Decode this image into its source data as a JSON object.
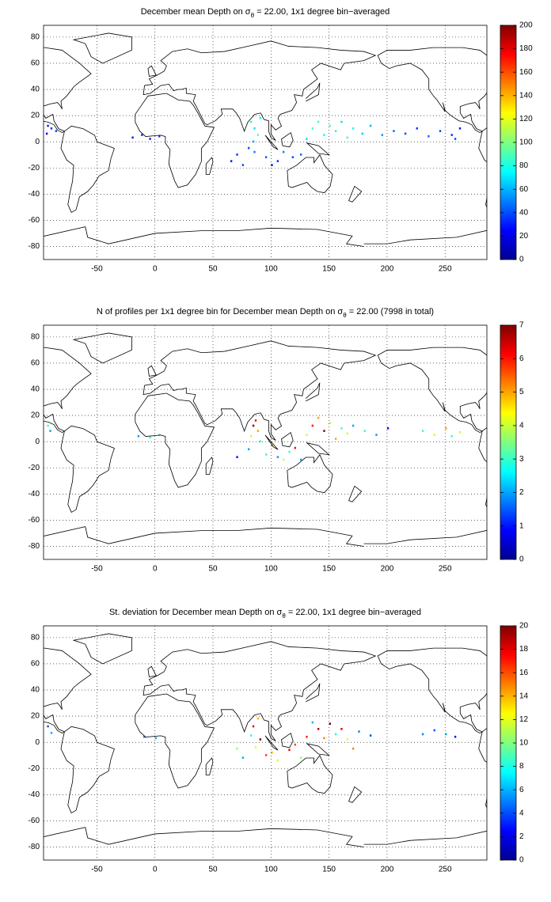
{
  "chart_data": [
    {
      "type": "heatmap",
      "colormap": "jet",
      "title": [
        "December mean Depth on σ",
        "θ",
        " = 22.00, 1x1 degree bin−averaged"
      ],
      "xlim": [
        -96,
        286
      ],
      "ylim": [
        -90,
        89
      ],
      "xticks": [
        -50,
        0,
        50,
        100,
        150,
        200,
        250
      ],
      "yticks": [
        -80,
        -60,
        -40,
        -20,
        0,
        20,
        40,
        60,
        80
      ],
      "grid": true,
      "clim": [
        0,
        200
      ],
      "cticks": [
        0,
        20,
        40,
        60,
        80,
        100,
        120,
        140,
        160,
        180,
        200
      ],
      "lon": [
        -93,
        -90,
        -94,
        -86,
        -20,
        -12,
        -5,
        3,
        82,
        85,
        88,
        84,
        90,
        80,
        70,
        65,
        75,
        95,
        105,
        110,
        118,
        125,
        130,
        135,
        140,
        145,
        150,
        155,
        160,
        165,
        170,
        178,
        185,
        195,
        205,
        215,
        225,
        235,
        245,
        255,
        262,
        258,
        100,
        85
      ],
      "lat": [
        12,
        10,
        6,
        8,
        3,
        5,
        2,
        4,
        15,
        10,
        5,
        0,
        18,
        -5,
        -10,
        -15,
        -18,
        -12,
        -15,
        -8,
        -12,
        -10,
        2,
        10,
        15,
        5,
        12,
        8,
        15,
        3,
        10,
        6,
        12,
        5,
        8,
        6,
        10,
        4,
        8,
        5,
        10,
        2,
        -18,
        -8
      ],
      "values": [
        30,
        35,
        25,
        40,
        30,
        35,
        30,
        35,
        80,
        70,
        90,
        60,
        75,
        40,
        35,
        30,
        40,
        45,
        35,
        50,
        40,
        45,
        70,
        90,
        85,
        75,
        95,
        80,
        70,
        85,
        75,
        65,
        60,
        55,
        45,
        40,
        35,
        45,
        40,
        35,
        30,
        40,
        30,
        50
      ]
    },
    {
      "type": "heatmap",
      "colormap": "jet",
      "title": [
        "N of profiles per 1x1 degree bin for December mean Depth on σ",
        "θ",
        " = 22.00 (7998 in total)"
      ],
      "xlim": [
        -96,
        286
      ],
      "ylim": [
        -90,
        89
      ],
      "xticks": [
        -50,
        0,
        50,
        100,
        150,
        200,
        250
      ],
      "yticks": [
        -80,
        -60,
        -40,
        -20,
        0,
        20,
        40,
        60,
        80
      ],
      "grid": true,
      "clim": [
        0,
        7
      ],
      "cticks": [
        0,
        1,
        2,
        3,
        4,
        5,
        6,
        7
      ],
      "lon": [
        -93,
        -91,
        -15,
        -5,
        3,
        84,
        86,
        88,
        82,
        90,
        80,
        70,
        95,
        105,
        115,
        125,
        130,
        135,
        140,
        145,
        150,
        155,
        160,
        165,
        170,
        180,
        190,
        200,
        230,
        240,
        250,
        255,
        262,
        120,
        110,
        100
      ],
      "lat": [
        12,
        8,
        4,
        3,
        5,
        12,
        16,
        8,
        4,
        0,
        -6,
        -12,
        -10,
        -12,
        -8,
        -14,
        5,
        12,
        18,
        8,
        14,
        2,
        10,
        6,
        12,
        8,
        5,
        10,
        8,
        5,
        10,
        4,
        7,
        -5,
        -14,
        -3
      ],
      "values": [
        3,
        2,
        2,
        3,
        3,
        7,
        6,
        5,
        4,
        3,
        2,
        1,
        3,
        2,
        3,
        2,
        4,
        6,
        5,
        7,
        4,
        5,
        3,
        4,
        2,
        3,
        2,
        1,
        3,
        4,
        5,
        3,
        4,
        6,
        4,
        5
      ]
    },
    {
      "type": "heatmap",
      "colormap": "jet",
      "title": [
        "St. deviation for December mean Depth on σ",
        "θ",
        " = 22.00, 1x1 degree bin−averaged"
      ],
      "xlim": [
        -96,
        286
      ],
      "ylim": [
        -90,
        89
      ],
      "xticks": [
        -50,
        0,
        50,
        100,
        150,
        200,
        250
      ],
      "yticks": [
        -80,
        -60,
        -40,
        -20,
        0,
        20,
        40,
        60,
        80
      ],
      "grid": true,
      "clim": [
        0,
        20
      ],
      "cticks": [
        0,
        2,
        4,
        6,
        8,
        10,
        12,
        14,
        16,
        18,
        20
      ],
      "lon": [
        -93,
        -90,
        -10,
        0,
        84,
        88,
        82,
        90,
        86,
        75,
        95,
        105,
        115,
        125,
        130,
        135,
        140,
        145,
        150,
        155,
        160,
        165,
        175,
        185,
        230,
        240,
        250,
        258,
        120,
        100,
        70,
        170
      ],
      "lat": [
        12,
        7,
        4,
        3,
        12,
        18,
        5,
        2,
        -4,
        -12,
        -10,
        -14,
        -6,
        -12,
        4,
        15,
        10,
        3,
        14,
        6,
        10,
        2,
        8,
        5,
        6,
        9,
        6,
        4,
        -2,
        -8,
        -5,
        -5
      ],
      "values": [
        4,
        6,
        5,
        6,
        18,
        14,
        8,
        20,
        12,
        6,
        16,
        12,
        18,
        10,
        17,
        6,
        19,
        15,
        20,
        8,
        18,
        12,
        5,
        4,
        5,
        4,
        6,
        3,
        16,
        14,
        10,
        15
      ]
    }
  ]
}
